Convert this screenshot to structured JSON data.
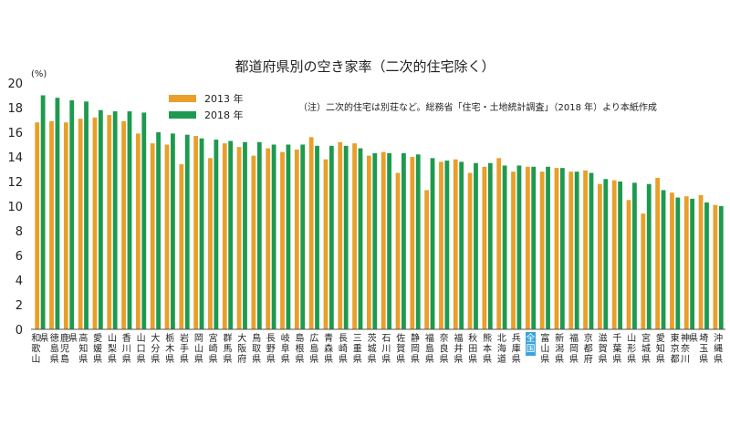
{
  "chart_data": {
    "type": "bar",
    "title": "都道府県別の空き家率（二次的住宅除く）",
    "note": "（注）二次的住宅は別荘など。総務省「住宅・土地統計調査」（2018 年）より本紙作成",
    "unit_label": "(%)",
    "ylim": [
      0,
      20
    ],
    "yticks": [
      0,
      2,
      4,
      6,
      8,
      10,
      12,
      14,
      16,
      18,
      20
    ],
    "grid": false,
    "legend_position": "top-left",
    "highlight_category": "全国",
    "categories": [
      "和歌山県",
      "徳島県",
      "鹿児島県",
      "高知県",
      "愛媛県",
      "山梨県",
      "香川県",
      "山口県",
      "大分県",
      "栃木県",
      "岩手県",
      "岡山県",
      "宮崎県",
      "群馬県",
      "大阪府",
      "鳥取県",
      "長野県",
      "岐阜県",
      "島根県",
      "広島県",
      "青森県",
      "長崎県",
      "三重県",
      "茨城県",
      "石川県",
      "佐賀県",
      "静岡県",
      "福島県",
      "奈良県",
      "福井県",
      "秋田県",
      "熊本県",
      "北海道",
      "兵庫県",
      "全国",
      "富山県",
      "新潟県",
      "福岡県",
      "京都府",
      "滋賀県",
      "千葉県",
      "山形県",
      "宮城県",
      "愛知県",
      "東京都",
      "神奈川県",
      "埼玉県",
      "沖縄県"
    ],
    "series": [
      {
        "name": "2013 年",
        "color": "#e8a02a",
        "values": [
          16.8,
          16.9,
          16.8,
          17.1,
          17.2,
          17.4,
          16.9,
          15.9,
          15.1,
          15.0,
          13.4,
          15.7,
          13.9,
          15.1,
          14.8,
          14.1,
          14.7,
          14.4,
          14.6,
          15.6,
          13.8,
          15.2,
          15.1,
          14.1,
          14.4,
          12.7,
          14.0,
          11.3,
          13.6,
          13.8,
          12.7,
          13.2,
          13.9,
          12.8,
          13.2,
          12.8,
          13.1,
          12.8,
          12.9,
          11.8,
          12.1,
          10.5,
          9.4,
          12.3,
          11.1,
          10.8,
          10.9,
          10.1
        ]
      },
      {
        "name": "2018 年",
        "color": "#1e9a4e",
        "values": [
          19.0,
          18.8,
          18.6,
          18.5,
          17.8,
          17.7,
          17.7,
          17.6,
          16.0,
          15.9,
          15.8,
          15.5,
          15.4,
          15.3,
          15.2,
          15.2,
          15.0,
          15.0,
          15.0,
          14.9,
          14.9,
          14.9,
          14.7,
          14.3,
          14.3,
          14.3,
          14.2,
          13.9,
          13.7,
          13.6,
          13.5,
          13.5,
          13.3,
          13.3,
          13.2,
          13.2,
          13.1,
          12.8,
          12.7,
          12.2,
          12.0,
          11.9,
          11.8,
          11.3,
          10.7,
          10.6,
          10.3,
          10.0
        ]
      }
    ]
  }
}
